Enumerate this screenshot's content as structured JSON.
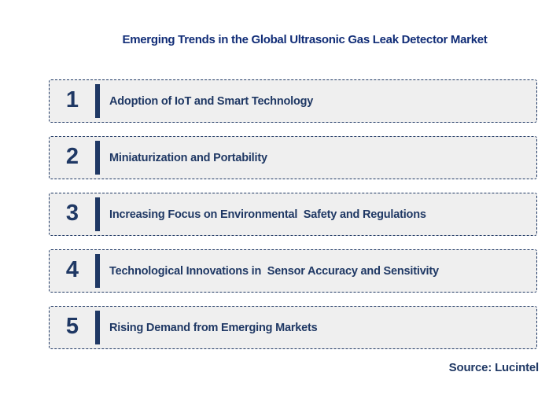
{
  "title": "Emerging Trends in the Global Ultrasonic Gas Leak Detector Market",
  "trends": [
    {
      "number": "1",
      "label": "Adoption of IoT and Smart Technology"
    },
    {
      "number": "2",
      "label": "Miniaturization and Portability"
    },
    {
      "number": "3",
      "label": "Increasing Focus on Environmental  Safety and Regulations"
    },
    {
      "number": "4",
      "label": "Technological Innovations in  Sensor Accuracy and Sensitivity"
    },
    {
      "number": "5",
      "label": "Rising Demand from Emerging Markets"
    }
  ],
  "source": "Source: Lucintel",
  "colors": {
    "navy": "#1F3864",
    "title_navy": "#112D77",
    "row_bg": "#EFEFEF",
    "page_bg": "#FFFFFF"
  }
}
